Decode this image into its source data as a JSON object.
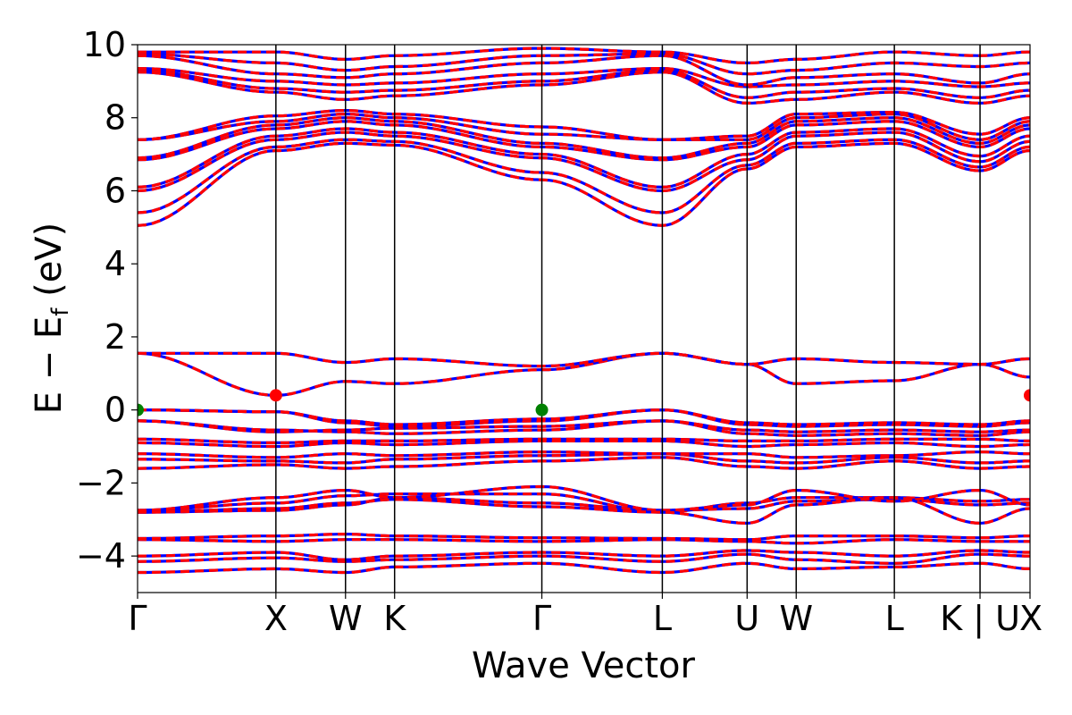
{
  "chart_data": {
    "type": "line",
    "title": "",
    "xlabel": "Wave Vector",
    "ylabel": "E − E",
    "ylabel_sub": "f",
    "ylabel_unit": " (eV)",
    "ylim": [
      -5,
      10
    ],
    "xlim": [
      0,
      1
    ],
    "yticks": [
      {
        "value": -4,
        "label": "−4"
      },
      {
        "value": -2,
        "label": "−2"
      },
      {
        "value": 0,
        "label": "0"
      },
      {
        "value": 2,
        "label": "2"
      },
      {
        "value": 4,
        "label": "4"
      },
      {
        "value": 6,
        "label": "6"
      },
      {
        "value": 8,
        "label": "8"
      },
      {
        "value": 10,
        "label": "10"
      }
    ],
    "kpoints": [
      {
        "label": "Γ",
        "pos": 0.0
      },
      {
        "label": "X",
        "pos": 0.155
      },
      {
        "label": "W",
        "pos": 0.233
      },
      {
        "label": "K",
        "pos": 0.288
      },
      {
        "label": "Γ",
        "pos": 0.453
      },
      {
        "label": "L",
        "pos": 0.588
      },
      {
        "label": "U",
        "pos": 0.683
      },
      {
        "label": "W",
        "pos": 0.738
      },
      {
        "label": "L",
        "pos": 0.848
      },
      {
        "label": "K | U",
        "pos": 0.944
      },
      {
        "label": "X",
        "pos": 1.0
      }
    ],
    "series_colors": {
      "spin_up": "#0000ff",
      "spin_down": "#ff0000"
    },
    "markers": [
      {
        "type": "VBM",
        "color": "#008000",
        "points": [
          [
            0.0,
            0.0
          ],
          [
            0.453,
            0.0
          ]
        ]
      },
      {
        "type": "CBM",
        "color": "#ff0000",
        "points": [
          [
            0.155,
            0.4
          ],
          [
            1.0,
            0.4
          ]
        ]
      }
    ],
    "bands": [
      [
        -4.45,
        -4.35,
        -4.45,
        -4.3,
        -4.2,
        -4.45,
        -4.2,
        -4.35,
        -4.3,
        -4.2,
        -4.35,
        -4.45
      ],
      [
        -4.15,
        -4.05,
        -4.15,
        -4.1,
        -4.0,
        -4.15,
        -3.95,
        -4.1,
        -4.2,
        -3.95,
        -4.0,
        -4.15
      ],
      [
        -4.0,
        -3.9,
        -4.1,
        -4.0,
        -3.9,
        -4.0,
        -3.85,
        -3.9,
        -4.0,
        -3.85,
        -3.9,
        -4.0
      ],
      [
        -3.55,
        -3.6,
        -3.55,
        -3.55,
        -3.6,
        -3.55,
        -3.6,
        -3.65,
        -3.55,
        -3.6,
        -3.6,
        -3.65
      ],
      [
        -3.52,
        -3.45,
        -3.4,
        -3.45,
        -3.5,
        -3.52,
        -3.55,
        -3.45,
        -3.45,
        -3.5,
        -3.45,
        -3.4
      ],
      [
        -2.8,
        -2.75,
        -2.6,
        -2.4,
        -2.55,
        -2.75,
        -2.7,
        -2.5,
        -2.45,
        -2.6,
        -2.55,
        -2.6
      ],
      [
        -2.75,
        -2.55,
        -2.35,
        -2.3,
        -2.3,
        -2.8,
        -2.55,
        -2.4,
        -2.4,
        -2.5,
        -2.45,
        -2.55
      ],
      [
        -2.75,
        -2.4,
        -2.2,
        -2.4,
        -2.1,
        -2.75,
        -2.6,
        -2.2,
        -2.5,
        -2.2,
        -2.6,
        -2.2
      ],
      [
        -2.8,
        -2.7,
        -2.55,
        -2.45,
        -2.65,
        -2.8,
        -3.1,
        -2.6,
        -2.4,
        -3.1,
        -2.7,
        -2.55
      ],
      [
        -1.6,
        -1.5,
        -1.6,
        -1.55,
        -1.4,
        -1.3,
        -1.55,
        -1.6,
        -1.4,
        -1.6,
        -1.55,
        -1.6
      ],
      [
        -1.35,
        -1.4,
        -1.45,
        -1.35,
        -1.25,
        -1.2,
        -1.4,
        -1.45,
        -1.3,
        -1.45,
        -1.4,
        -1.35
      ],
      [
        -1.2,
        -1.3,
        -1.2,
        -1.25,
        -1.15,
        -1.2,
        -1.2,
        -1.3,
        -1.25,
        -1.15,
        -1.2,
        -1.25
      ],
      [
        -0.9,
        -1.0,
        -0.9,
        -0.95,
        -0.85,
        -0.85,
        -1.0,
        -0.95,
        -0.9,
        -1.0,
        -0.95,
        -0.9
      ],
      [
        -0.8,
        -0.9,
        -0.85,
        -0.85,
        -0.8,
        -0.8,
        -0.85,
        -0.85,
        -0.8,
        -0.8,
        -0.85,
        -0.8
      ],
      [
        -0.3,
        -0.55,
        -0.6,
        -0.65,
        -0.55,
        -0.3,
        -0.65,
        -0.7,
        -0.65,
        -0.7,
        -0.6,
        -0.55
      ],
      [
        -0.3,
        -0.6,
        -0.55,
        -0.5,
        -0.45,
        -0.3,
        -0.55,
        -0.6,
        -0.55,
        -0.6,
        -0.55,
        -0.55
      ],
      [
        0.0,
        -0.05,
        -0.35,
        -0.45,
        -0.3,
        0.0,
        -0.4,
        -0.45,
        -0.4,
        -0.45,
        -0.35,
        0.0
      ],
      [
        0.0,
        -0.05,
        -0.3,
        -0.4,
        -0.25,
        0.0,
        -0.35,
        -0.4,
        -0.35,
        -0.4,
        -0.3,
        0.0
      ],
      [
        1.55,
        0.4,
        0.78,
        0.72,
        1.1,
        1.55,
        1.25,
        0.72,
        0.8,
        1.25,
        0.9,
        0.4
      ],
      [
        1.55,
        1.55,
        1.3,
        1.4,
        1.2,
        1.55,
        1.25,
        1.4,
        1.3,
        1.25,
        1.4,
        1.55
      ],
      [
        5.05,
        7.1,
        7.3,
        7.25,
        6.3,
        5.05,
        6.6,
        7.2,
        7.3,
        6.55,
        7.1,
        7.1
      ],
      [
        5.4,
        7.2,
        7.4,
        7.35,
        6.5,
        5.4,
        6.7,
        7.3,
        7.4,
        6.65,
        7.2,
        7.2
      ],
      [
        6.0,
        7.4,
        7.6,
        7.5,
        6.9,
        6.0,
        6.85,
        7.5,
        7.6,
        6.8,
        7.35,
        7.4
      ],
      [
        6.1,
        7.5,
        7.7,
        7.6,
        7.0,
        6.1,
        7.0,
        7.6,
        7.7,
        6.95,
        7.5,
        7.5
      ],
      [
        6.85,
        7.7,
        7.9,
        7.8,
        7.2,
        6.85,
        7.2,
        7.8,
        7.9,
        7.2,
        7.7,
        7.8
      ],
      [
        6.9,
        7.8,
        8.0,
        7.9,
        7.3,
        6.9,
        7.3,
        7.9,
        8.0,
        7.3,
        7.8,
        7.9
      ],
      [
        7.4,
        7.9,
        8.1,
        8.0,
        7.55,
        7.4,
        7.4,
        8.0,
        8.1,
        7.4,
        7.9,
        7.95
      ],
      [
        7.4,
        8.05,
        8.2,
        8.1,
        7.75,
        7.4,
        7.5,
        8.1,
        8.15,
        7.55,
        8.0,
        8.0
      ],
      [
        9.25,
        8.7,
        8.5,
        8.6,
        8.9,
        9.25,
        8.4,
        8.5,
        8.7,
        8.4,
        8.6,
        8.7
      ],
      [
        9.3,
        8.8,
        8.7,
        8.75,
        9.0,
        9.3,
        8.55,
        8.7,
        8.8,
        8.55,
        8.75,
        8.9
      ],
      [
        9.35,
        9.0,
        8.9,
        8.95,
        9.2,
        9.35,
        8.85,
        8.9,
        9.0,
        8.85,
        8.95,
        9.1
      ],
      [
        9.7,
        9.2,
        9.1,
        9.2,
        9.5,
        9.7,
        8.9,
        9.1,
        9.2,
        8.95,
        9.2,
        9.3
      ],
      [
        9.75,
        9.5,
        9.3,
        9.4,
        9.7,
        9.75,
        9.2,
        9.3,
        9.5,
        9.4,
        9.5,
        9.5
      ],
      [
        9.8,
        9.8,
        9.6,
        9.7,
        9.9,
        9.8,
        9.5,
        9.6,
        9.8,
        9.7,
        9.8,
        9.7
      ]
    ]
  }
}
